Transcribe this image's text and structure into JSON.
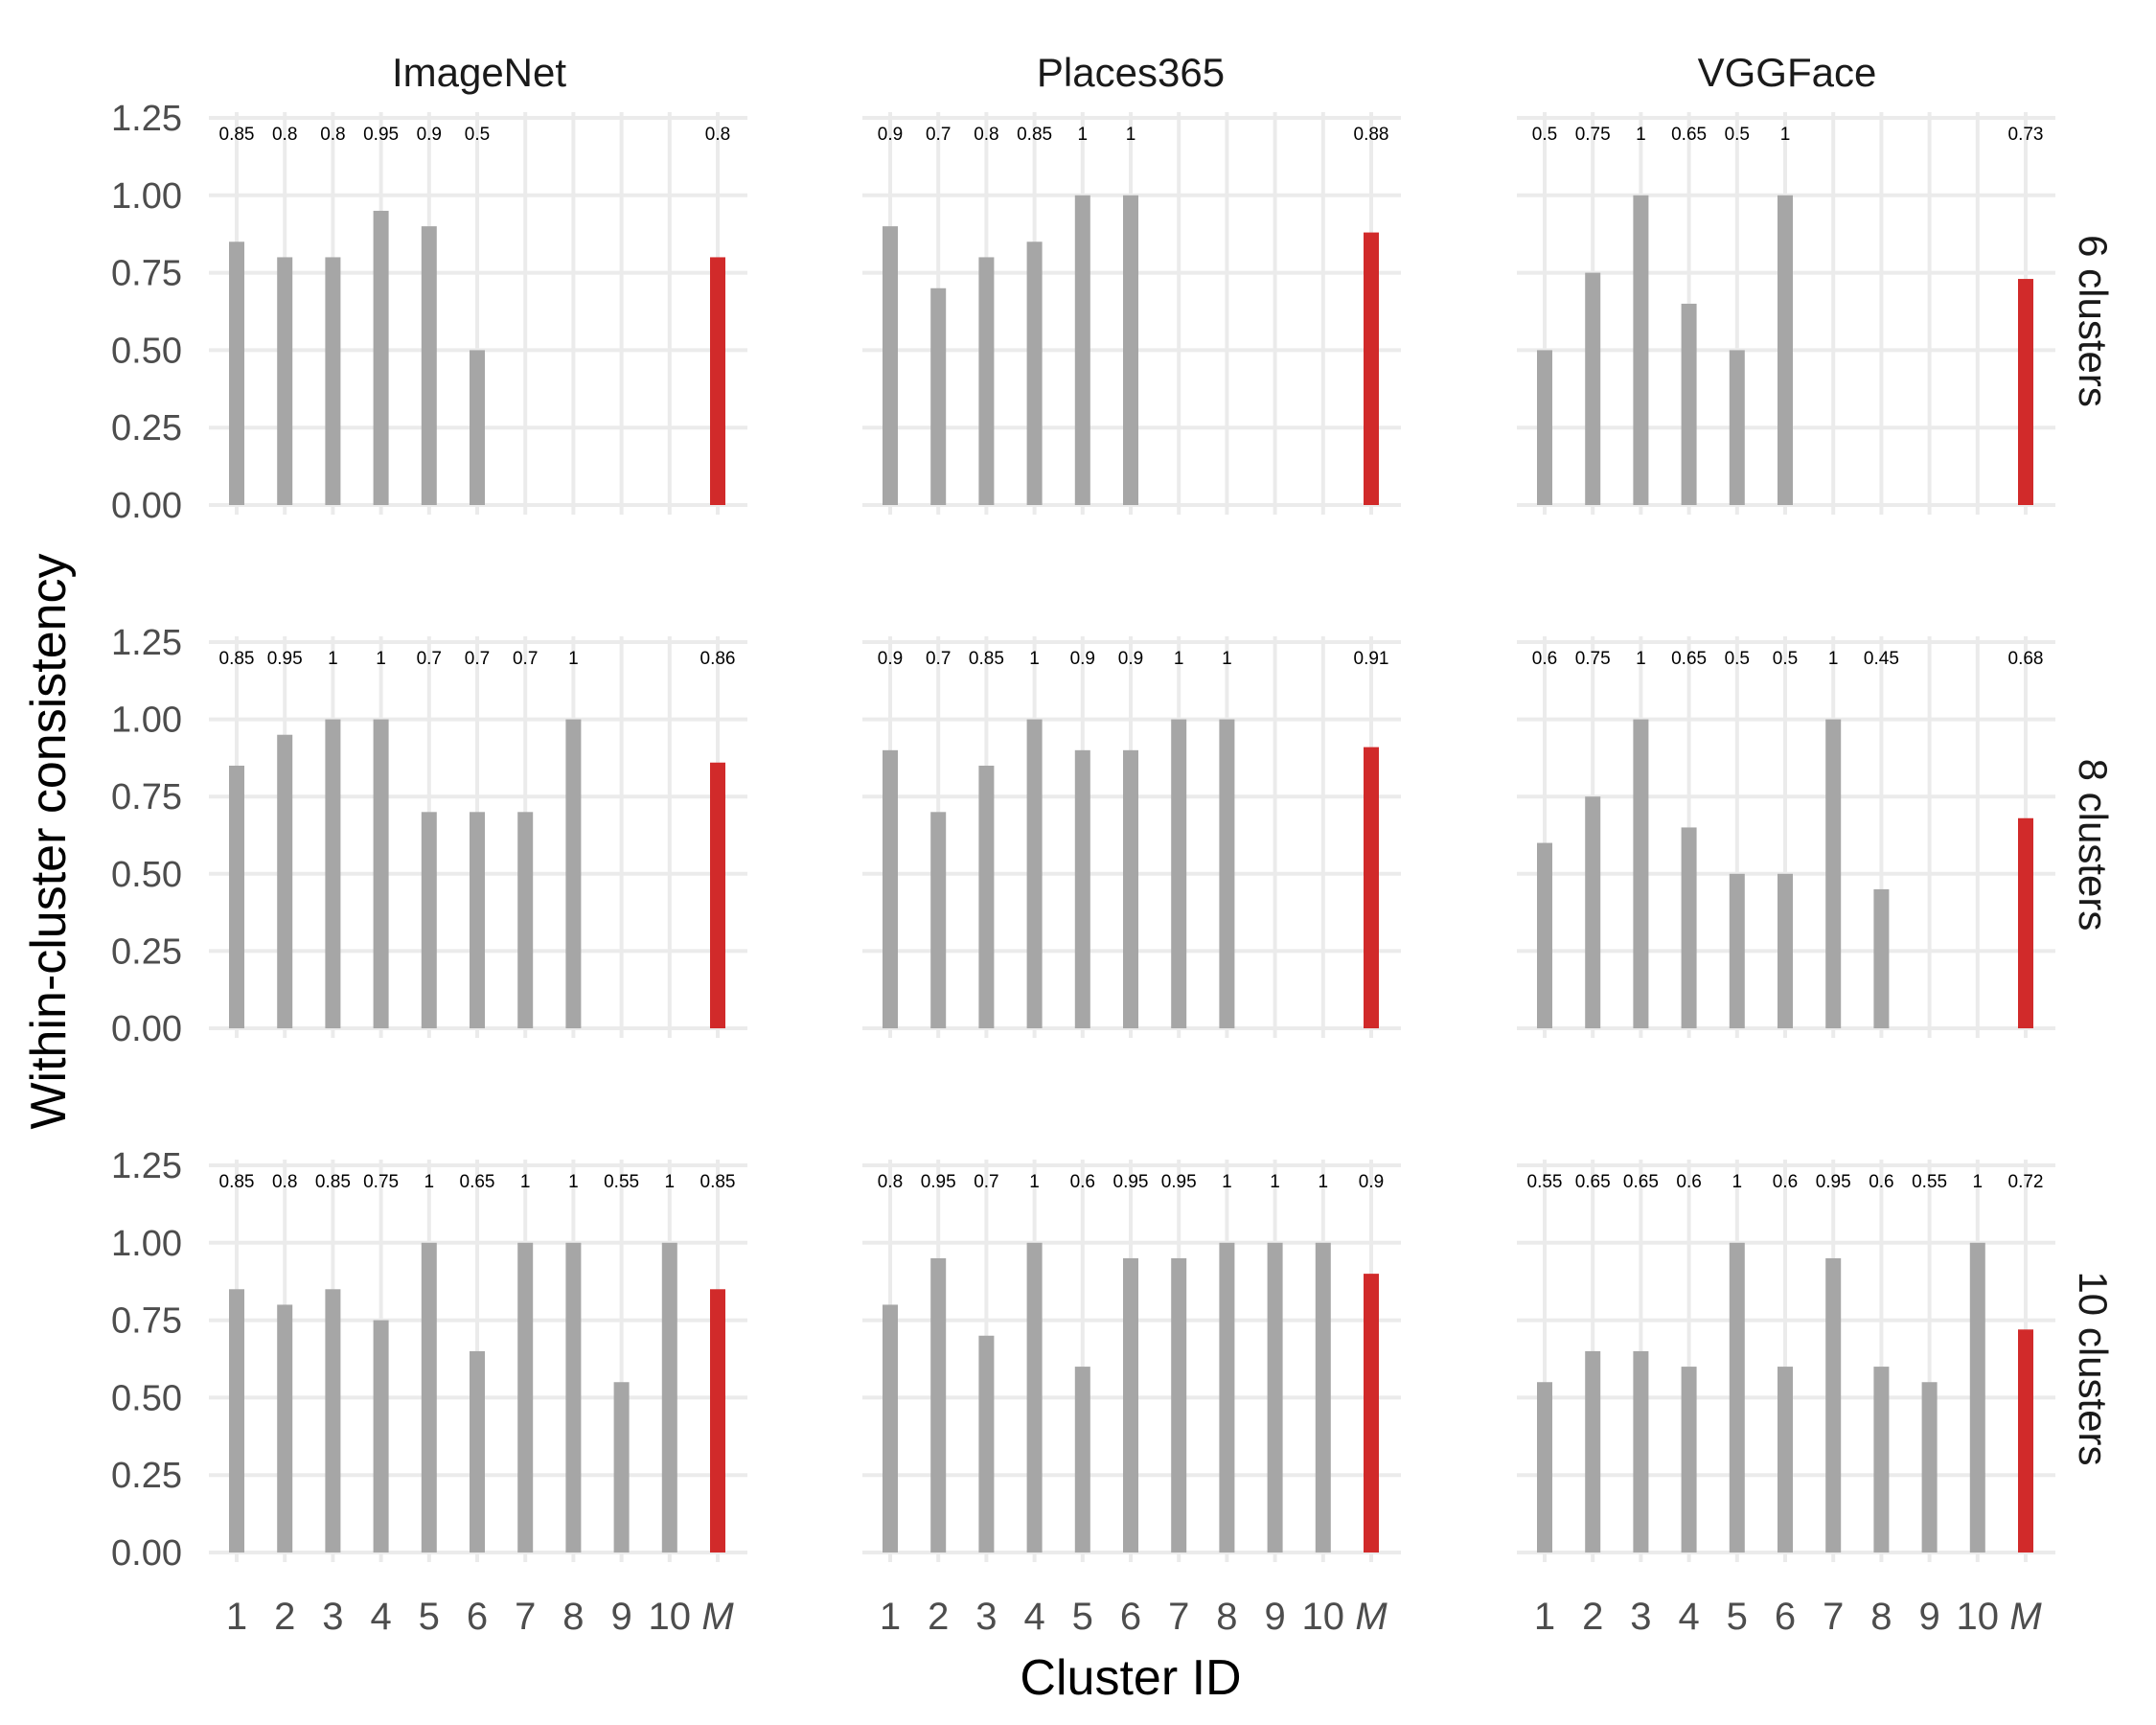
{
  "chart_data": {
    "type": "bar",
    "xlabel": "Cluster ID",
    "ylabel": "Within-cluster consistency",
    "ylim": [
      0,
      1.25
    ],
    "yticks": [
      "0.00",
      "0.25",
      "0.50",
      "0.75",
      "1.00",
      "1.25"
    ],
    "categories": [
      "1",
      "2",
      "3",
      "4",
      "5",
      "6",
      "7",
      "8",
      "9",
      "10",
      "M"
    ],
    "columns": [
      "ImageNet",
      "Places365",
      "VGGFace"
    ],
    "rows": [
      "6 clusters",
      "8 clusters",
      "10 clusters"
    ],
    "grid": true,
    "colors": {
      "cluster_bar": "#a6a6a6",
      "mean_bar": "#d12a2a",
      "grid": "#ebebeb"
    },
    "panels": [
      {
        "row": "6 clusters",
        "values": {
          "ImageNet": [
            0.85,
            0.8,
            0.8,
            0.95,
            0.9,
            0.5
          ],
          "Places365": [
            0.9,
            0.7,
            0.8,
            0.85,
            1,
            1
          ],
          "VGGFace": [
            0.5,
            0.75,
            1,
            0.65,
            0.5,
            1
          ]
        },
        "labels": {
          "ImageNet": [
            "0.85",
            "0.8",
            "0.8",
            "0.95",
            "0.9",
            "0.5"
          ],
          "Places365": [
            "0.9",
            "0.7",
            "0.8",
            "0.85",
            "1",
            "1"
          ],
          "VGGFace": [
            "0.5",
            "0.75",
            "1",
            "0.65",
            "0.5",
            "1"
          ]
        },
        "mean": {
          "ImageNet": 0.8,
          "Places365": 0.88,
          "VGGFace": 0.73
        },
        "mean_labels": {
          "ImageNet": "0.8",
          "Places365": "0.88",
          "VGGFace": "0.73"
        }
      },
      {
        "row": "8 clusters",
        "values": {
          "ImageNet": [
            0.85,
            0.95,
            1,
            1,
            0.7,
            0.7,
            0.7,
            1
          ],
          "Places365": [
            0.9,
            0.7,
            0.85,
            1,
            0.9,
            0.9,
            1,
            1
          ],
          "VGGFace": [
            0.6,
            0.75,
            1,
            0.65,
            0.5,
            0.5,
            1,
            0.45
          ]
        },
        "labels": {
          "ImageNet": [
            "0.85",
            "0.95",
            "1",
            "1",
            "0.7",
            "0.7",
            "0.7",
            "1"
          ],
          "Places365": [
            "0.9",
            "0.7",
            "0.85",
            "1",
            "0.9",
            "0.9",
            "1",
            "1"
          ],
          "VGGFace": [
            "0.6",
            "0.75",
            "1",
            "0.65",
            "0.5",
            "0.5",
            "1",
            "0.45"
          ]
        },
        "mean": {
          "ImageNet": 0.86,
          "Places365": 0.91,
          "VGGFace": 0.68
        },
        "mean_labels": {
          "ImageNet": "0.86",
          "Places365": "0.91",
          "VGGFace": "0.68"
        }
      },
      {
        "row": "10 clusters",
        "values": {
          "ImageNet": [
            0.85,
            0.8,
            0.85,
            0.75,
            1,
            0.65,
            1,
            1,
            0.55,
            1
          ],
          "Places365": [
            0.8,
            0.95,
            0.7,
            1,
            0.6,
            0.95,
            0.95,
            1,
            1,
            1
          ],
          "VGGFace": [
            0.55,
            0.65,
            0.65,
            0.6,
            1,
            0.6,
            0.95,
            0.6,
            0.55,
            1
          ]
        },
        "labels": {
          "ImageNet": [
            "0.85",
            "0.8",
            "0.85",
            "0.75",
            "1",
            "0.65",
            "1",
            "1",
            "0.55",
            "1"
          ],
          "Places365": [
            "0.8",
            "0.95",
            "0.7",
            "1",
            "0.6",
            "0.95",
            "0.95",
            "1",
            "1",
            "1"
          ],
          "VGGFace": [
            "0.55",
            "0.65",
            "0.65",
            "0.6",
            "1",
            "0.6",
            "0.95",
            "0.6",
            "0.55",
            "1"
          ]
        },
        "mean": {
          "ImageNet": 0.85,
          "Places365": 0.9,
          "VGGFace": 0.72
        },
        "mean_labels": {
          "ImageNet": "0.85",
          "Places365": "0.9",
          "VGGFace": "0.72"
        }
      }
    ]
  }
}
